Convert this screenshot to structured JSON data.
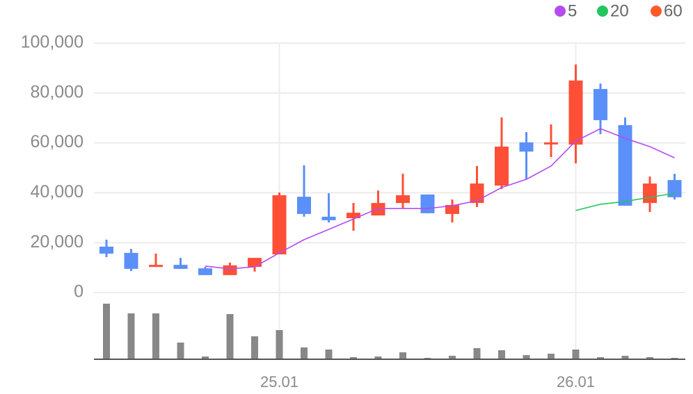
{
  "chart_data": {
    "type": "candlestick",
    "categories": [
      null,
      null,
      null,
      null,
      null,
      null,
      null,
      "25.01",
      null,
      null,
      null,
      null,
      null,
      null,
      null,
      null,
      null,
      null,
      null,
      "26.01",
      null,
      null,
      null,
      null
    ],
    "up_color": "#ff4f37",
    "down_color": "#5b8ff9",
    "open": [
      18400,
      15900,
      10300,
      11100,
      9700,
      7000,
      10300,
      15300,
      38400,
      30400,
      29800,
      30900,
      35900,
      39300,
      31500,
      35900,
      42900,
      60200,
      59600,
      59300,
      81600,
      67100,
      35900,
      45100
    ],
    "high": [
      21200,
      17500,
      15600,
      13900,
      10300,
      12000,
      13900,
      40100,
      51000,
      39800,
      35900,
      40900,
      47600,
      39300,
      37300,
      50700,
      70200,
      64300,
      67400,
      91400,
      83800,
      70200,
      46500,
      47600
    ],
    "low": [
      14200,
      8600,
      10300,
      9500,
      7000,
      7000,
      8400,
      15300,
      30400,
      28100,
      24800,
      30900,
      33700,
      31800,
      28100,
      34300,
      41500,
      45400,
      54300,
      51800,
      63500,
      34800,
      32300,
      37300
    ],
    "close": [
      15600,
      9500,
      11100,
      9500,
      7000,
      10900,
      13900,
      39000,
      31500,
      29000,
      32000,
      35900,
      39000,
      31800,
      35100,
      43700,
      58500,
      56500,
      60200,
      85000,
      69100,
      34800,
      43700,
      38200
    ],
    "series": [
      {
        "name": "5",
        "color": "#b44cf0",
        "values": [
          null,
          null,
          null,
          null,
          10600,
          9500,
          10300,
          15900,
          21200,
          25300,
          29500,
          33700,
          33700,
          33700,
          34800,
          36800,
          42100,
          45400,
          50700,
          60700,
          65700,
          61800,
          58500,
          54000
        ]
      },
      {
        "name": "20",
        "color": "#22c55e",
        "values": [
          null,
          null,
          null,
          null,
          null,
          null,
          null,
          null,
          null,
          null,
          null,
          null,
          null,
          null,
          null,
          null,
          null,
          null,
          null,
          32900,
          35400,
          36500,
          38200,
          39800
        ]
      },
      {
        "name": "60",
        "color": "#ff5a2b",
        "values": [
          null,
          null,
          null,
          null,
          null,
          null,
          null,
          null,
          null,
          null,
          null,
          null,
          null,
          null,
          null,
          null,
          null,
          null,
          null,
          null,
          null,
          null,
          null,
          null
        ]
      }
    ],
    "volume": [
      80,
      66,
      66,
      24,
      4,
      65,
      33,
      42,
      17,
      14,
      3,
      4,
      10,
      2,
      5,
      16,
      13,
      6,
      8,
      14,
      3,
      5,
      3,
      2
    ],
    "volume_color": "#888888",
    "volume_lim": [
      0,
      100
    ],
    "ylim": [
      0,
      100000
    ],
    "yticks": [
      {
        "value": 0,
        "label": "0"
      },
      {
        "value": 20000,
        "label": "20,000"
      },
      {
        "value": 40000,
        "label": "40,000"
      },
      {
        "value": 60000,
        "label": "60,000"
      },
      {
        "value": 80000,
        "label": "80,000"
      },
      {
        "value": 100000,
        "label": "100,000"
      }
    ],
    "grid": true
  }
}
